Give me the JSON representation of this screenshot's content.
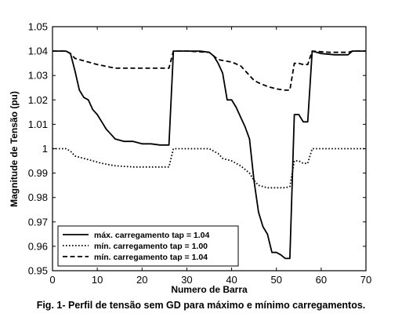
{
  "chart_data": {
    "type": "line",
    "xlabel": "Numero de Barra",
    "ylabel": "Magnitude de Tensão (pu)",
    "xlim": [
      0,
      70
    ],
    "ylim": [
      0.95,
      1.05
    ],
    "x_ticks": [
      "0",
      "10",
      "20",
      "30",
      "40",
      "50",
      "60",
      "70"
    ],
    "y_ticks": [
      "0.95",
      "0.96",
      "0.97",
      "0.98",
      "0.99",
      "1",
      "1.01",
      "1.02",
      "1.03",
      "1.04",
      "1.05"
    ],
    "grid": false,
    "legend_position": "lower-left",
    "series": [
      {
        "name": "máx. carregamento tap = 1.04",
        "style": "solid",
        "color": "#000000",
        "points": [
          [
            0,
            1.04
          ],
          [
            3,
            1.04
          ],
          [
            4,
            1.039
          ],
          [
            5,
            1.032
          ],
          [
            6,
            1.024
          ],
          [
            7,
            1.021
          ],
          [
            8,
            1.02
          ],
          [
            9,
            1.016
          ],
          [
            10,
            1.014
          ],
          [
            11,
            1.011
          ],
          [
            12,
            1.008
          ],
          [
            13,
            1.006
          ],
          [
            14,
            1.004
          ],
          [
            16,
            1.003
          ],
          [
            18,
            1.003
          ],
          [
            20,
            1.002
          ],
          [
            22,
            1.002
          ],
          [
            24,
            1.0015
          ],
          [
            26,
            1.0015
          ],
          [
            27,
            1.04
          ],
          [
            30,
            1.04
          ],
          [
            33,
            1.04
          ],
          [
            35,
            1.0395
          ],
          [
            36,
            1.038
          ],
          [
            37,
            1.035
          ],
          [
            38,
            1.031
          ],
          [
            39,
            1.02
          ],
          [
            40,
            1.02
          ],
          [
            41,
            1.017
          ],
          [
            42,
            1.013
          ],
          [
            43,
            1.009
          ],
          [
            44,
            1.004
          ],
          [
            45,
            0.987
          ],
          [
            46,
            0.974
          ],
          [
            47,
            0.968
          ],
          [
            48,
            0.965
          ],
          [
            49,
            0.9575
          ],
          [
            50,
            0.9575
          ],
          [
            51,
            0.9565
          ],
          [
            52,
            0.955
          ],
          [
            53,
            0.955
          ],
          [
            54,
            1.014
          ],
          [
            55,
            1.014
          ],
          [
            56,
            1.011
          ],
          [
            57,
            1.011
          ],
          [
            58,
            1.04
          ],
          [
            60,
            1.039
          ],
          [
            63,
            1.0385
          ],
          [
            66,
            1.0385
          ],
          [
            67,
            1.04
          ],
          [
            70,
            1.04
          ]
        ]
      },
      {
        "name": "mín. carregamento tap = 1.00",
        "style": "dotted",
        "color": "#000000",
        "points": [
          [
            0,
            1.0
          ],
          [
            3,
            1.0
          ],
          [
            4,
            0.999
          ],
          [
            5,
            0.997
          ],
          [
            7,
            0.996
          ],
          [
            9,
            0.995
          ],
          [
            11,
            0.994
          ],
          [
            14,
            0.993
          ],
          [
            18,
            0.9925
          ],
          [
            22,
            0.9925
          ],
          [
            26,
            0.9925
          ],
          [
            27,
            1.0
          ],
          [
            30,
            1.0
          ],
          [
            35,
            1.0
          ],
          [
            37,
            0.998
          ],
          [
            38,
            0.996
          ],
          [
            40,
            0.995
          ],
          [
            42,
            0.993
          ],
          [
            44,
            0.99
          ],
          [
            45,
            0.987
          ],
          [
            46,
            0.985
          ],
          [
            48,
            0.984
          ],
          [
            50,
            0.984
          ],
          [
            52,
            0.984
          ],
          [
            53,
            0.9845
          ],
          [
            54,
            0.995
          ],
          [
            55,
            0.995
          ],
          [
            56,
            0.994
          ],
          [
            57,
            0.994
          ],
          [
            58,
            1.0
          ],
          [
            62,
            1.0
          ],
          [
            66,
            1.0
          ],
          [
            67,
            1.0
          ],
          [
            70,
            1.0
          ]
        ]
      },
      {
        "name": "mín. carregamento tap = 1.04",
        "style": "dashed",
        "color": "#000000",
        "points": [
          [
            0,
            1.04
          ],
          [
            3,
            1.04
          ],
          [
            4,
            1.039
          ],
          [
            5,
            1.037
          ],
          [
            7,
            1.036
          ],
          [
            10,
            1.0345
          ],
          [
            14,
            1.033
          ],
          [
            18,
            1.033
          ],
          [
            22,
            1.033
          ],
          [
            26,
            1.033
          ],
          [
            27,
            1.04
          ],
          [
            30,
            1.04
          ],
          [
            35,
            1.0395
          ],
          [
            37,
            1.0365
          ],
          [
            40,
            1.0355
          ],
          [
            42,
            1.034
          ],
          [
            43,
            1.032
          ],
          [
            45,
            1.028
          ],
          [
            46,
            1.027
          ],
          [
            48,
            1.0255
          ],
          [
            50,
            1.0245
          ],
          [
            52,
            1.024
          ],
          [
            53,
            1.024
          ],
          [
            54,
            1.035
          ],
          [
            55,
            1.035
          ],
          [
            56,
            1.0345
          ],
          [
            57,
            1.0345
          ],
          [
            58,
            1.04
          ],
          [
            62,
            1.0395
          ],
          [
            66,
            1.0395
          ],
          [
            67,
            1.04
          ],
          [
            70,
            1.04
          ]
        ]
      }
    ]
  },
  "caption": "Fig. 1- Perfil de tensão sem GD para máximo e mínimo carregamentos."
}
